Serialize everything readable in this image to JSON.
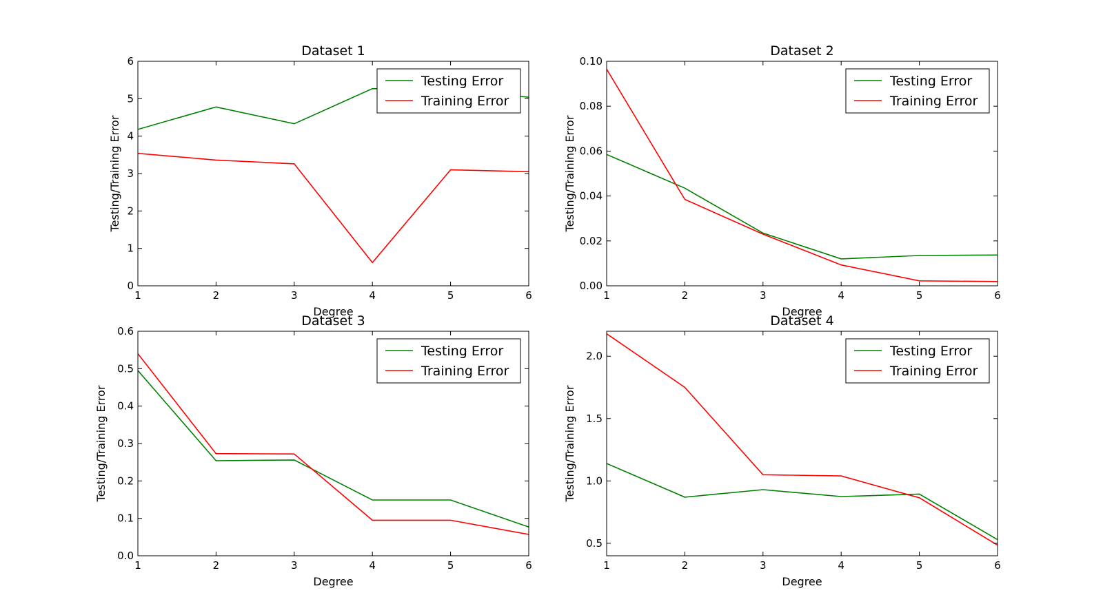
{
  "chart_data": [
    {
      "type": "line",
      "title": "Dataset 1",
      "xlabel": "Degree",
      "ylabel": "Testing/Training Error",
      "x": [
        1,
        2,
        3,
        4,
        5,
        6
      ],
      "xlim": [
        1,
        6
      ],
      "ylim": [
        0,
        6
      ],
      "yticks": [
        "0",
        "1",
        "2",
        "3",
        "4",
        "5",
        "6"
      ],
      "xticks": [
        "1",
        "2",
        "3",
        "4",
        "5",
        "6"
      ],
      "legend": "top-right",
      "grid": false,
      "series": [
        {
          "name": "Testing Error",
          "color": "#008000",
          "values": [
            4.18,
            4.78,
            4.33,
            5.27,
            5.24,
            5.04
          ]
        },
        {
          "name": "Training Error",
          "color": "#ff0000",
          "values": [
            3.54,
            3.36,
            3.26,
            0.62,
            3.1,
            3.05
          ]
        }
      ]
    },
    {
      "type": "line",
      "title": "Dataset 2",
      "xlabel": "Degree",
      "ylabel": "Testing/Training Error",
      "x": [
        1,
        2,
        3,
        4,
        5,
        6
      ],
      "xlim": [
        1,
        6
      ],
      "ylim": [
        0,
        0.1
      ],
      "yticks": [
        "0.00",
        "0.02",
        "0.04",
        "0.06",
        "0.08",
        "0.10"
      ],
      "xticks": [
        "1",
        "2",
        "3",
        "4",
        "5",
        "6"
      ],
      "legend": "top-right",
      "grid": false,
      "series": [
        {
          "name": "Testing Error",
          "color": "#008000",
          "values": [
            0.0585,
            0.0435,
            0.0235,
            0.012,
            0.0135,
            0.0137
          ]
        },
        {
          "name": "Training Error",
          "color": "#ff0000",
          "values": [
            0.0965,
            0.0385,
            0.023,
            0.0093,
            0.0022,
            0.0019
          ]
        }
      ]
    },
    {
      "type": "line",
      "title": "Dataset 3",
      "xlabel": "Degree",
      "ylabel": "Testing/Training Error",
      "x": [
        1,
        2,
        3,
        4,
        5,
        6
      ],
      "xlim": [
        1,
        6
      ],
      "ylim": [
        0,
        0.6
      ],
      "yticks": [
        "0.0",
        "0.1",
        "0.2",
        "0.3",
        "0.4",
        "0.5",
        "0.6"
      ],
      "xticks": [
        "1",
        "2",
        "3",
        "4",
        "5",
        "6"
      ],
      "legend": "top-right",
      "grid": false,
      "series": [
        {
          "name": "Testing Error",
          "color": "#008000",
          "values": [
            0.495,
            0.254,
            0.256,
            0.149,
            0.149,
            0.077
          ]
        },
        {
          "name": "Training Error",
          "color": "#ff0000",
          "values": [
            0.54,
            0.273,
            0.272,
            0.095,
            0.095,
            0.057
          ]
        }
      ]
    },
    {
      "type": "line",
      "title": "Dataset 4",
      "xlabel": "Degree",
      "ylabel": "Testing/Training Error",
      "x": [
        1,
        2,
        3,
        4,
        5,
        6
      ],
      "xlim": [
        1,
        6
      ],
      "ylim": [
        0.4,
        2.2
      ],
      "yticks": [
        "0.5",
        "1.0",
        "1.5",
        "2.0"
      ],
      "ytick_values": [
        0.5,
        1.0,
        1.5,
        2.0
      ],
      "xticks": [
        "1",
        "2",
        "3",
        "4",
        "5",
        "6"
      ],
      "legend": "top-right",
      "grid": false,
      "series": [
        {
          "name": "Testing Error",
          "color": "#008000",
          "values": [
            1.14,
            0.87,
            0.93,
            0.875,
            0.895,
            0.53
          ]
        },
        {
          "name": "Training Error",
          "color": "#ff0000",
          "values": [
            2.18,
            1.75,
            1.05,
            1.04,
            0.865,
            0.485
          ]
        }
      ]
    }
  ]
}
